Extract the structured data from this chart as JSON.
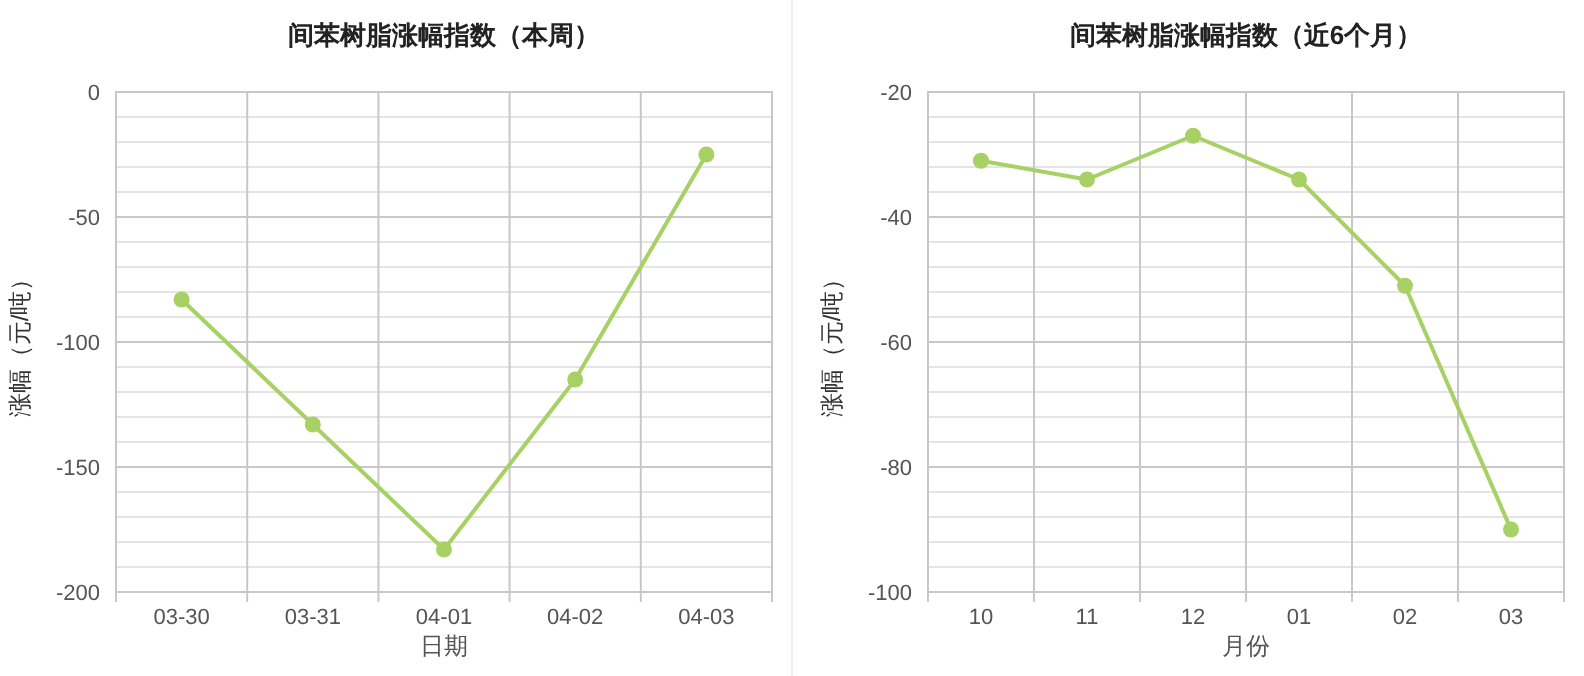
{
  "chart_data": [
    {
      "type": "line",
      "title": "间苯树脂涨幅指数（本周）",
      "xlabel": "日期",
      "ylabel": "涨幅（元/吨）",
      "categories": [
        "03-30",
        "03-31",
        "04-01",
        "04-02",
        "04-03"
      ],
      "series": [
        {
          "color": "#a8d165",
          "values": [
            -83,
            -133,
            -183,
            -115,
            -25
          ]
        }
      ],
      "ylim": [
        -200,
        0
      ],
      "yticks": [
        -200,
        {
          "value": -190,
          "label": null
        },
        {
          "value": -180,
          "label": null
        },
        {
          "value": -170,
          "label": null
        },
        {
          "value": -160,
          "label": null
        },
        -150,
        {
          "value": -140,
          "label": null
        },
        {
          "value": -130,
          "label": null
        },
        {
          "value": -120,
          "label": null
        },
        {
          "value": -110,
          "label": null
        },
        -100,
        {
          "value": -90,
          "label": null
        },
        {
          "value": -80,
          "label": null
        },
        {
          "value": -70,
          "label": null
        },
        {
          "value": -60,
          "label": null
        },
        -50,
        {
          "value": -40,
          "label": null
        },
        {
          "value": -30,
          "label": null
        },
        {
          "value": -20,
          "label": null
        },
        {
          "value": -10,
          "label": null
        },
        0
      ],
      "grid": true,
      "marker": "circle",
      "line_style": "solid"
    },
    {
      "type": "line",
      "title": "间苯树脂涨幅指数（近6个月）",
      "xlabel": "月份",
      "ylabel": "涨幅（元/吨）",
      "categories": [
        "10",
        "11",
        "12",
        "01",
        "02",
        "03"
      ],
      "series": [
        {
          "color": "#a8d165",
          "values": [
            -31,
            -34,
            -27,
            -34,
            -51,
            -90
          ]
        }
      ],
      "ylim": [
        -100,
        -20
      ],
      "yticks": [
        -100,
        {
          "value": -96,
          "label": null
        },
        {
          "value": -92,
          "label": null
        },
        {
          "value": -88,
          "label": null
        },
        {
          "value": -84,
          "label": null
        },
        -80,
        {
          "value": -76,
          "label": null
        },
        {
          "value": -72,
          "label": null
        },
        {
          "value": -68,
          "label": null
        },
        {
          "value": -64,
          "label": null
        },
        -60,
        {
          "value": -56,
          "label": null
        },
        {
          "value": -52,
          "label": null
        },
        {
          "value": -48,
          "label": null
        },
        {
          "value": -44,
          "label": null
        },
        -40,
        {
          "value": -36,
          "label": null
        },
        {
          "value": -32,
          "label": null
        },
        {
          "value": -28,
          "label": null
        },
        {
          "value": -24,
          "label": null
        },
        -20
      ],
      "grid": true,
      "marker": "circle",
      "line_style": "solid"
    }
  ]
}
